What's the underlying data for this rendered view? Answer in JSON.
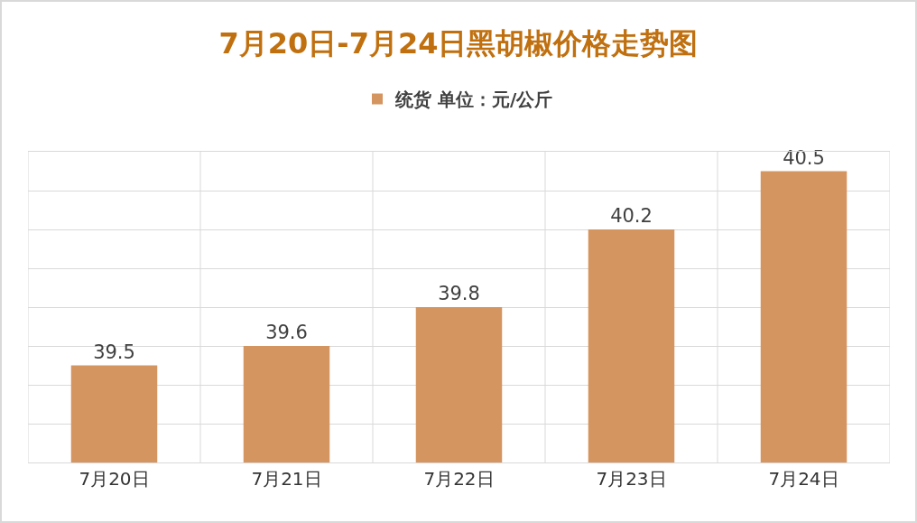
{
  "chart_data": {
    "type": "bar",
    "title": "7月20日-7月24日黑胡椒价格走势图",
    "categories": [
      "7月20日",
      "7月21日",
      "7月22日",
      "7月23日",
      "7月24日"
    ],
    "series": [
      {
        "name": "统货 单位：元/公斤",
        "color": "#d59560",
        "values": [
          39.5,
          39.6,
          39.8,
          40.2,
          40.5
        ]
      }
    ],
    "ylim": [
      39,
      40.6
    ],
    "yticks": [
      {
        "value": 39,
        "label": null
      },
      {
        "value": 39.2,
        "label": null
      },
      {
        "value": 39.4,
        "label": null
      },
      {
        "value": 39.6,
        "label": null
      },
      {
        "value": 39.8,
        "label": null
      },
      {
        "value": 40,
        "label": null
      },
      {
        "value": 40.2,
        "label": null
      },
      {
        "value": 40.4,
        "label": null
      },
      {
        "value": 40.6,
        "label": null
      }
    ],
    "tick_labels": "x",
    "grid": true,
    "legend": "top",
    "data_labels": true
  }
}
